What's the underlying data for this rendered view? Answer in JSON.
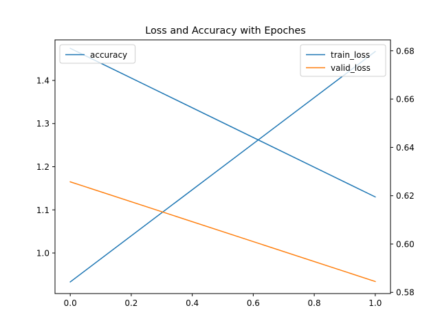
{
  "chart_data": {
    "type": "line",
    "title": "Loss and Accuracy with Epoches",
    "xlabel": "",
    "ylabel_left": "",
    "ylabel_right": "",
    "xlim": [
      -0.05,
      1.05
    ],
    "ylim_left": [
      0.906,
      1.494
    ],
    "ylim_right": [
      0.5795,
      0.6845
    ],
    "x_ticks": [
      0.0,
      0.2,
      0.4,
      0.6,
      0.8,
      1.0
    ],
    "x_tick_labels": [
      "0.0",
      "0.2",
      "0.4",
      "0.6",
      "0.8",
      "1.0"
    ],
    "y_ticks_left": [
      1.0,
      1.1,
      1.2,
      1.3,
      1.4
    ],
    "y_tick_labels_left": [
      "1.0",
      "1.1",
      "1.2",
      "1.3",
      "1.4"
    ],
    "y_ticks_right": [
      0.58,
      0.6,
      0.62,
      0.64,
      0.66,
      0.68
    ],
    "y_tick_labels_right": [
      "0.58",
      "0.60",
      "0.62",
      "0.64",
      "0.66",
      "0.68"
    ],
    "grid": false,
    "series": [
      {
        "name": "train_loss",
        "axis": "left",
        "color": "#1f77b4",
        "x": [
          0,
          1
        ],
        "y": [
          0.933,
          1.467
        ]
      },
      {
        "name": "valid_loss",
        "axis": "left",
        "color": "#ff7f0e",
        "x": [
          0,
          1
        ],
        "y": [
          1.165,
          0.934
        ]
      },
      {
        "name": "accuracy",
        "axis": "right",
        "color": "#1f77b4",
        "x": [
          0,
          1
        ],
        "y": [
          0.681,
          0.6195
        ]
      }
    ],
    "legends": [
      {
        "placement": "upper-left",
        "entries": [
          "accuracy"
        ]
      },
      {
        "placement": "upper-right",
        "entries": [
          "train_loss",
          "valid_loss"
        ]
      }
    ]
  }
}
